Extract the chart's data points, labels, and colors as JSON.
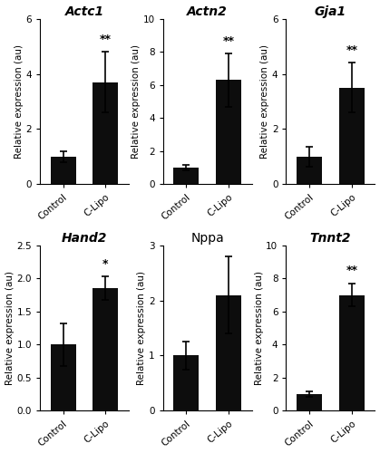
{
  "panels": [
    {
      "title": "Actc1",
      "title_italic": true,
      "categories": [
        "Control",
        "C-Lipo"
      ],
      "values": [
        1.0,
        3.7
      ],
      "errors": [
        0.2,
        1.1
      ],
      "ylim": [
        0,
        6
      ],
      "yticks": [
        0,
        2,
        4,
        6
      ],
      "significance": "**",
      "sig_on_bar": 1
    },
    {
      "title": "Actn2",
      "title_italic": true,
      "categories": [
        "Control",
        "C-Lipo"
      ],
      "values": [
        1.0,
        6.3
      ],
      "errors": [
        0.15,
        1.6
      ],
      "ylim": [
        0,
        10
      ],
      "yticks": [
        0,
        2,
        4,
        6,
        8,
        10
      ],
      "significance": "**",
      "sig_on_bar": 1
    },
    {
      "title": "Gja1",
      "title_italic": true,
      "categories": [
        "Control",
        "C-Lipo"
      ],
      "values": [
        1.0,
        3.5
      ],
      "errors": [
        0.35,
        0.9
      ],
      "ylim": [
        0,
        6
      ],
      "yticks": [
        0,
        2,
        4,
        6
      ],
      "significance": "**",
      "sig_on_bar": 1
    },
    {
      "title": "Hand2",
      "title_italic": true,
      "categories": [
        "Control",
        "C-Lipo"
      ],
      "values": [
        1.0,
        1.85
      ],
      "errors": [
        0.32,
        0.18
      ],
      "ylim": [
        0,
        2.5
      ],
      "yticks": [
        0.0,
        0.5,
        1.0,
        1.5,
        2.0,
        2.5
      ],
      "significance": "*",
      "sig_on_bar": 1
    },
    {
      "title": "Nppa",
      "title_italic": false,
      "categories": [
        "Control",
        "C-Lipo"
      ],
      "values": [
        1.0,
        2.1
      ],
      "errors": [
        0.25,
        0.7
      ],
      "ylim": [
        0,
        3
      ],
      "yticks": [
        0,
        1,
        2,
        3
      ],
      "significance": null,
      "sig_on_bar": 1
    },
    {
      "title": "Tnnt2",
      "title_italic": true,
      "categories": [
        "Control",
        "C-Lipo"
      ],
      "values": [
        1.0,
        7.0
      ],
      "errors": [
        0.15,
        0.7
      ],
      "ylim": [
        0,
        10
      ],
      "yticks": [
        0,
        2,
        4,
        6,
        8,
        10
      ],
      "significance": "**",
      "sig_on_bar": 1
    }
  ],
  "bar_color": "#0d0d0d",
  "bar_width": 0.6,
  "ylabel": "Relative expression (au)",
  "figure_bg": "#ffffff",
  "tick_fontsize": 7.5,
  "label_fontsize": 7.5,
  "title_fontsize": 10,
  "sig_fontsize": 9
}
